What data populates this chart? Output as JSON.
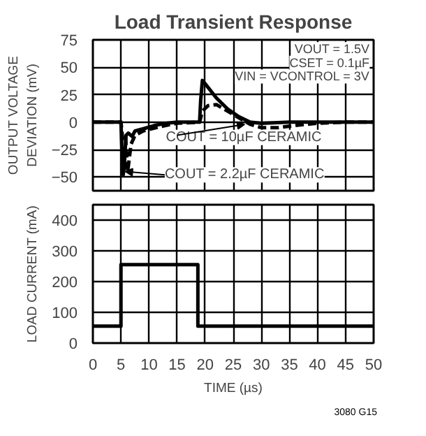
{
  "chart_data": [
    {
      "type": "line",
      "title": "Load Transient Response",
      "ylabel": "OUTPUT VOLTAGE\nDEVIATION (mV)",
      "xlim": [
        0,
        50
      ],
      "xticks": [
        0,
        5,
        10,
        15,
        20,
        25,
        30,
        35,
        40,
        45,
        50
      ],
      "ylim": [
        -62.5,
        75
      ],
      "yticks": [
        -50,
        -25,
        0,
        25,
        50,
        75
      ],
      "tick_labels": "y",
      "grid": true,
      "series": [
        {
          "color": "#000000",
          "line_style": "solid",
          "x": [
            0,
            5,
            5.2,
            5.4,
            5.6,
            5.9,
            6.3,
            7,
            7.5,
            9,
            11,
            13,
            15,
            19,
            19.2,
            19.5,
            20,
            22,
            24,
            26,
            28,
            30,
            35,
            50
          ],
          "values": [
            0,
            0,
            -30,
            -48,
            -40,
            -12,
            -10,
            -13,
            -8,
            -6,
            -3,
            -1,
            0,
            0,
            20,
            38,
            35,
            22,
            12,
            5,
            0,
            -1,
            0,
            0
          ]
        },
        {
          "color": "#000000",
          "line_style": "dashed",
          "x": [
            0,
            5,
            5.3,
            5.8,
            6.2,
            6.8,
            7.5,
            9,
            12,
            15,
            19,
            19.5,
            20.5,
            22,
            24,
            26,
            28,
            30,
            33,
            36,
            40,
            45,
            50
          ],
          "values": [
            0,
            0,
            -15,
            -12,
            -45,
            -20,
            -12,
            -8,
            -4,
            -1,
            0,
            10,
            15,
            16,
            10,
            4,
            -2,
            -5,
            -5,
            -3,
            -1,
            0,
            0
          ]
        }
      ],
      "annotations": [
        "VOUT = 1.5V",
        "CSET = 0.1µF",
        "VIN = VCONTROL = 3V",
        {
          "text": "COUT = 10µF CERAMIC",
          "x": 27,
          "y": -2
        },
        {
          "text": "COUT = 2.2µF CERAMIC",
          "x": 5.8,
          "y": -45
        }
      ]
    },
    {
      "type": "line",
      "xlabel": "TIME (µs)",
      "ylabel": "LOAD CURRENT (mA)",
      "xlim": [
        0,
        50
      ],
      "xticks": [
        0,
        5,
        10,
        15,
        20,
        25,
        30,
        35,
        40,
        45,
        50
      ],
      "ylim": [
        0,
        450
      ],
      "yticks": [
        0,
        100,
        200,
        300,
        400
      ],
      "grid": true,
      "series": [
        {
          "color": "#000000",
          "line_style": "solid",
          "x": [
            0,
            5,
            5,
            18.7,
            18.7,
            50
          ],
          "values": [
            55,
            55,
            255,
            255,
            55,
            55
          ]
        }
      ],
      "annotations": [
        "3080 G15"
      ]
    }
  ]
}
